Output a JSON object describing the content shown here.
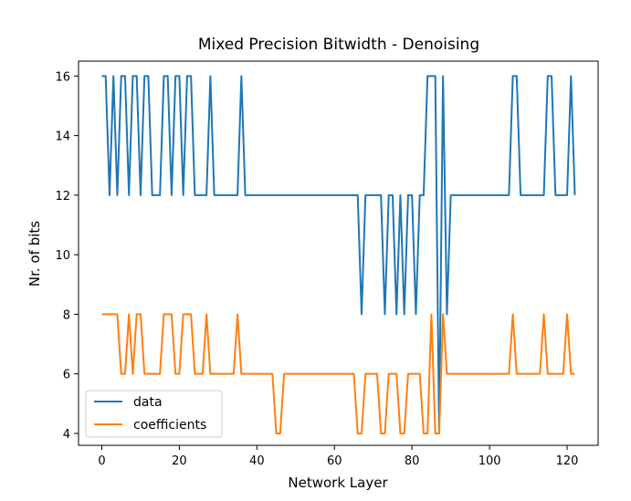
{
  "chart_data": {
    "type": "line",
    "title": "Mixed Precision Bitwidth - Denoising",
    "xlabel": "Network Layer",
    "ylabel": "Nr. of bits",
    "xlim": [
      -6,
      128
    ],
    "ylim": [
      3.6,
      16.5
    ],
    "xticks": [
      0,
      20,
      40,
      60,
      80,
      100,
      120
    ],
    "yticks": [
      4,
      6,
      8,
      10,
      12,
      14,
      16
    ],
    "grid": false,
    "legend_position": "lower-left",
    "series": [
      {
        "name": "data",
        "color": "#1f77b4",
        "x": [
          0,
          1,
          2,
          3,
          4,
          5,
          6,
          7,
          8,
          9,
          10,
          11,
          12,
          13,
          14,
          15,
          16,
          17,
          18,
          19,
          20,
          21,
          22,
          23,
          24,
          25,
          26,
          27,
          28,
          29,
          30,
          31,
          32,
          33,
          34,
          35,
          36,
          37,
          38,
          39,
          40,
          41,
          42,
          43,
          44,
          45,
          46,
          47,
          48,
          49,
          50,
          51,
          52,
          53,
          54,
          55,
          56,
          57,
          58,
          59,
          60,
          61,
          62,
          63,
          64,
          65,
          66,
          67,
          68,
          69,
          70,
          71,
          72,
          73,
          74,
          75,
          76,
          77,
          78,
          79,
          80,
          81,
          82,
          83,
          84,
          85,
          86,
          87,
          88,
          89,
          90,
          91,
          92,
          93,
          94,
          95,
          96,
          97,
          98,
          99,
          100,
          101,
          102,
          103,
          104,
          105,
          106,
          107,
          108,
          109,
          110,
          111,
          112,
          113,
          114,
          115,
          116,
          117,
          118,
          119,
          120,
          121,
          122
        ],
        "y": [
          16,
          16,
          12,
          16,
          12,
          16,
          16,
          12,
          16,
          16,
          12,
          16,
          16,
          12,
          12,
          12,
          16,
          16,
          12,
          16,
          16,
          12,
          16,
          16,
          12,
          12,
          12,
          12,
          16,
          12,
          12,
          12,
          12,
          12,
          12,
          12,
          16,
          12,
          12,
          12,
          12,
          12,
          12,
          12,
          12,
          12,
          12,
          12,
          12,
          12,
          12,
          12,
          12,
          12,
          12,
          12,
          12,
          12,
          12,
          12,
          12,
          12,
          12,
          12,
          12,
          12,
          12,
          8,
          12,
          12,
          12,
          12,
          12,
          8,
          12,
          12,
          8,
          12,
          8,
          12,
          12,
          8,
          12,
          12,
          16,
          16,
          16,
          4,
          16,
          8,
          12,
          12,
          12,
          12,
          12,
          12,
          12,
          12,
          12,
          12,
          12,
          12,
          12,
          12,
          12,
          12,
          16,
          16,
          12,
          12,
          12,
          12,
          12,
          12,
          12,
          16,
          16,
          12,
          12,
          12,
          12,
          16,
          12
        ]
      },
      {
        "name": "coefficients",
        "color": "#ff7f0e",
        "x": [
          0,
          1,
          2,
          3,
          4,
          5,
          6,
          7,
          8,
          9,
          10,
          11,
          12,
          13,
          14,
          15,
          16,
          17,
          18,
          19,
          20,
          21,
          22,
          23,
          24,
          25,
          26,
          27,
          28,
          29,
          30,
          31,
          32,
          33,
          34,
          35,
          36,
          37,
          38,
          39,
          40,
          41,
          42,
          43,
          44,
          45,
          46,
          47,
          48,
          49,
          50,
          51,
          52,
          53,
          54,
          55,
          56,
          57,
          58,
          59,
          60,
          61,
          62,
          63,
          64,
          65,
          66,
          67,
          68,
          69,
          70,
          71,
          72,
          73,
          74,
          75,
          76,
          77,
          78,
          79,
          80,
          81,
          82,
          83,
          84,
          85,
          86,
          87,
          88,
          89,
          90,
          91,
          92,
          93,
          94,
          95,
          96,
          97,
          98,
          99,
          100,
          101,
          102,
          103,
          104,
          105,
          106,
          107,
          108,
          109,
          110,
          111,
          112,
          113,
          114,
          115,
          116,
          117,
          118,
          119,
          120,
          121,
          122
        ],
        "y": [
          8,
          8,
          8,
          8,
          8,
          6,
          6,
          8,
          6,
          8,
          8,
          6,
          6,
          6,
          6,
          6,
          8,
          8,
          8,
          6,
          6,
          8,
          8,
          8,
          6,
          6,
          6,
          8,
          6,
          6,
          6,
          6,
          6,
          6,
          6,
          8,
          6,
          6,
          6,
          6,
          6,
          6,
          6,
          6,
          6,
          4,
          4,
          6,
          6,
          6,
          6,
          6,
          6,
          6,
          6,
          6,
          6,
          6,
          6,
          6,
          6,
          6,
          6,
          6,
          6,
          6,
          4,
          4,
          6,
          6,
          6,
          6,
          4,
          4,
          6,
          6,
          6,
          4,
          4,
          6,
          6,
          6,
          6,
          4,
          4,
          8,
          4,
          4,
          8,
          6,
          6,
          6,
          6,
          6,
          6,
          6,
          6,
          6,
          6,
          6,
          6,
          6,
          6,
          6,
          6,
          6,
          8,
          6,
          6,
          6,
          6,
          6,
          6,
          6,
          8,
          6,
          6,
          6,
          6,
          6,
          8,
          6,
          6
        ]
      }
    ]
  }
}
